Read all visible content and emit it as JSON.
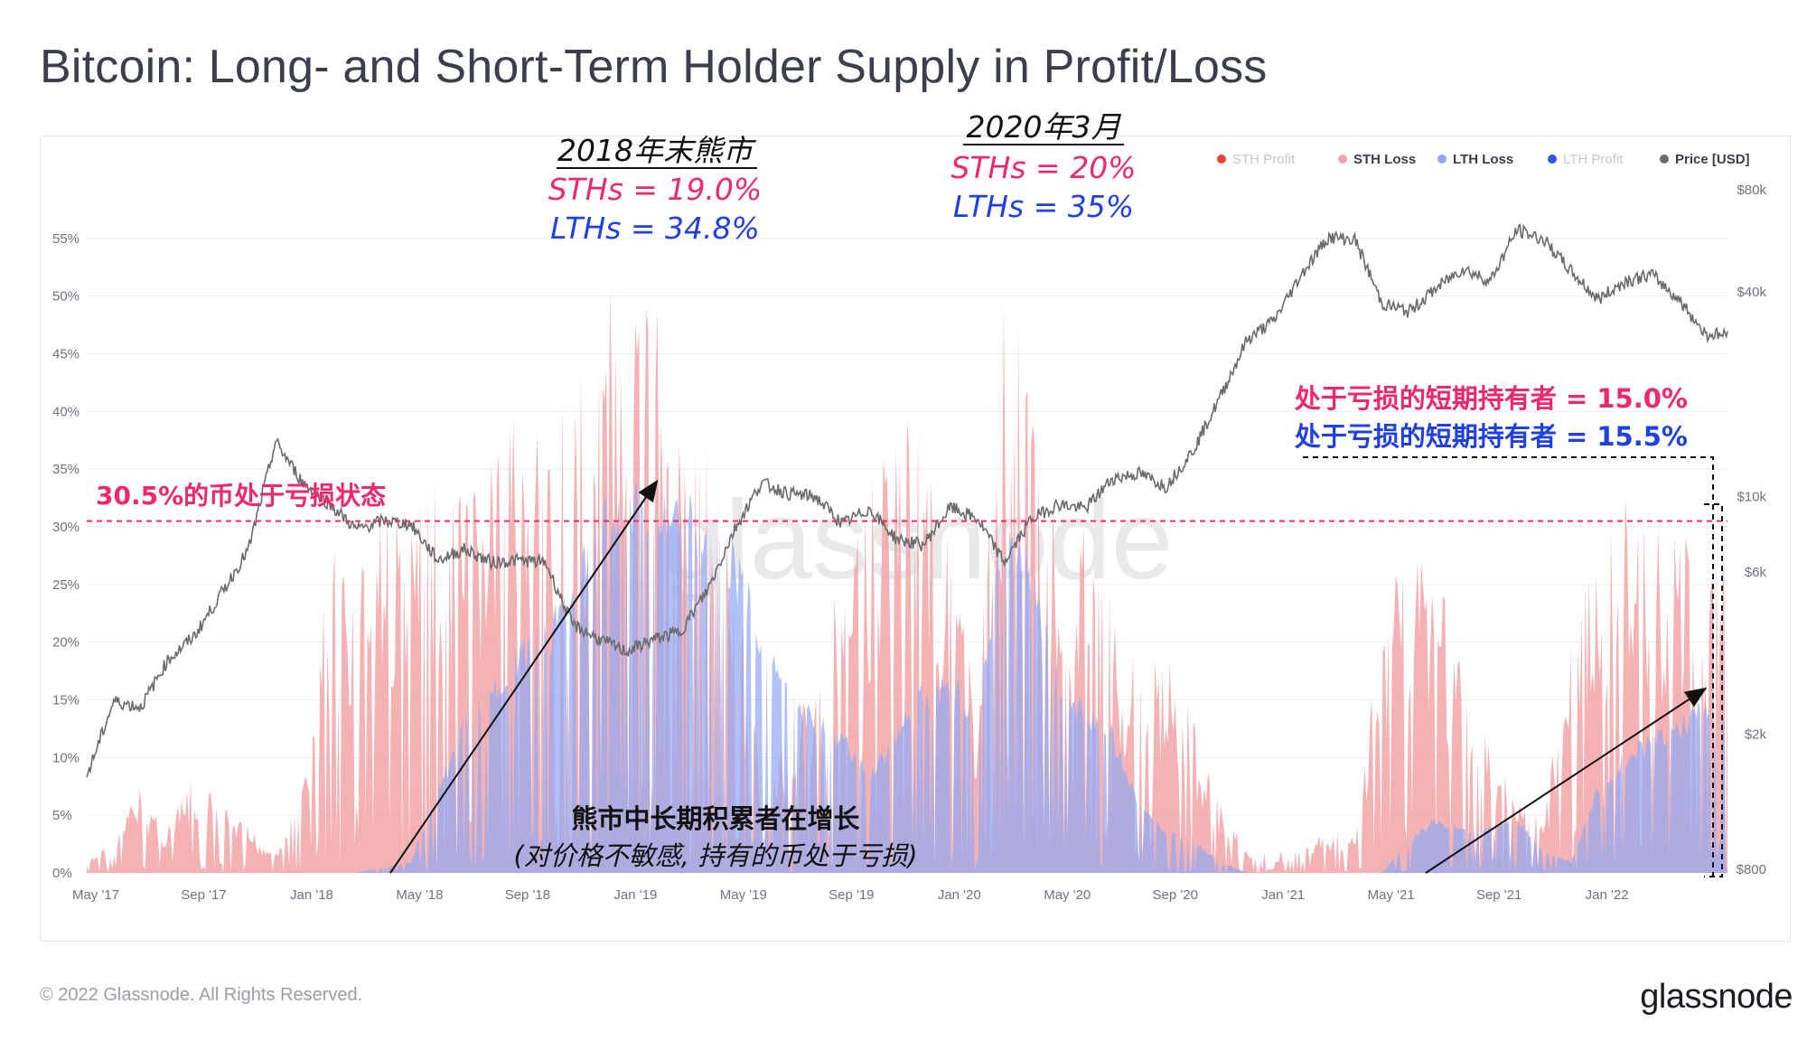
{
  "title": "Bitcoin: Long- and Short-Term Holder Supply in Profit/Loss",
  "footer": "© 2022 Glassnode. All Rights Reserved.",
  "brand": "glassnode",
  "watermark": "glassnode",
  "chart_data": {
    "type": "area",
    "legend_position": "top-right",
    "legend": [
      {
        "name": "STH Profit",
        "color": "#e8443e",
        "muted": true
      },
      {
        "name": "STH Loss",
        "color": "#f2a4a7",
        "muted": false
      },
      {
        "name": "LTH Loss",
        "color": "#93a8f2",
        "muted": false
      },
      {
        "name": "LTH Profit",
        "color": "#3a53e0",
        "muted": true
      },
      {
        "name": "Price [USD]",
        "color": "#6b6b6b",
        "muted": false
      }
    ],
    "x_ticks": [
      "May '17",
      "Sep '17",
      "Jan '18",
      "May '18",
      "Sep '18",
      "Jan '19",
      "May '19",
      "Sep '19",
      "Jan '20",
      "May '20",
      "Sep '20",
      "Jan '21",
      "May '21",
      "Sep '21",
      "Jan '22"
    ],
    "y_left_ticks": [
      "0%",
      "5%",
      "10%",
      "15%",
      "20%",
      "25%",
      "30%",
      "35%",
      "40%",
      "45%",
      "50%",
      "55%"
    ],
    "y_left_range": [
      0,
      60
    ],
    "y_right_ticks": [
      {
        "label": "$800",
        "value": 800
      },
      {
        "label": "$2k",
        "value": 2000
      },
      {
        "label": "$6k",
        "value": 6000
      },
      {
        "label": "$10k",
        "value": 10000
      },
      {
        "label": "$40k",
        "value": 40000
      },
      {
        "label": "$80k",
        "value": 80000
      }
    ],
    "y_right_scale": "log",
    "series": [
      {
        "name": "STH Loss",
        "color": "#f2a4a7",
        "points": [
          [
            "2017-05",
            1
          ],
          [
            "2017-06",
            3
          ],
          [
            "2017-07",
            8
          ],
          [
            "2017-08",
            4
          ],
          [
            "2017-09",
            9
          ],
          [
            "2017-10",
            6
          ],
          [
            "2017-11",
            4
          ],
          [
            "2017-12",
            2
          ],
          [
            "2018-01",
            8
          ],
          [
            "2018-02",
            28
          ],
          [
            "2018-03",
            31
          ],
          [
            "2018-04",
            33
          ],
          [
            "2018-05",
            32
          ],
          [
            "2018-06",
            38
          ],
          [
            "2018-07",
            33
          ],
          [
            "2018-08",
            38
          ],
          [
            "2018-09",
            40
          ],
          [
            "2018-10",
            40
          ],
          [
            "2018-11",
            42
          ],
          [
            "2018-12",
            50
          ],
          [
            "2019-01",
            52
          ],
          [
            "2019-02",
            52
          ],
          [
            "2019-03",
            46
          ],
          [
            "2019-04",
            40
          ],
          [
            "2019-05",
            28
          ],
          [
            "2019-06",
            8
          ],
          [
            "2019-07",
            12
          ],
          [
            "2019-08",
            20
          ],
          [
            "2019-09",
            26
          ],
          [
            "2019-10",
            36
          ],
          [
            "2019-11",
            40
          ],
          [
            "2019-12",
            40
          ],
          [
            "2020-01",
            28
          ],
          [
            "2020-02",
            15
          ],
          [
            "2020-03",
            53
          ],
          [
            "2020-04",
            43
          ],
          [
            "2020-05",
            33
          ],
          [
            "2020-06",
            30
          ],
          [
            "2020-07",
            25
          ],
          [
            "2020-08",
            18
          ],
          [
            "2020-09",
            19
          ],
          [
            "2020-10",
            14
          ],
          [
            "2020-11",
            6
          ],
          [
            "2020-12",
            2
          ],
          [
            "2021-01",
            2
          ],
          [
            "2021-02",
            2
          ],
          [
            "2021-03",
            4
          ],
          [
            "2021-04",
            3
          ],
          [
            "2021-05",
            25
          ],
          [
            "2021-06",
            29
          ],
          [
            "2021-07",
            29
          ],
          [
            "2021-08",
            18
          ],
          [
            "2021-09",
            12
          ],
          [
            "2021-10",
            6
          ],
          [
            "2021-11",
            5
          ],
          [
            "2021-12",
            23
          ],
          [
            "2022-01",
            28
          ],
          [
            "2022-02",
            33
          ],
          [
            "2022-03",
            30
          ],
          [
            "2022-04",
            31
          ],
          [
            "2022-05",
            30
          ]
        ]
      },
      {
        "name": "LTH Loss",
        "color": "#93a8f2",
        "points": [
          [
            "2017-05",
            0
          ],
          [
            "2018-03",
            0
          ],
          [
            "2018-05",
            1
          ],
          [
            "2018-07",
            14
          ],
          [
            "2018-09",
            20
          ],
          [
            "2018-11",
            25
          ],
          [
            "2018-12",
            33
          ],
          [
            "2019-01",
            34.8
          ],
          [
            "2019-02",
            34.8
          ],
          [
            "2019-03",
            34.8
          ],
          [
            "2019-04",
            32
          ],
          [
            "2019-05",
            29
          ],
          [
            "2019-06",
            22
          ],
          [
            "2019-07",
            18
          ],
          [
            "2019-08",
            14
          ],
          [
            "2019-09",
            13
          ],
          [
            "2019-10",
            9
          ],
          [
            "2019-11",
            13
          ],
          [
            "2019-12",
            17
          ],
          [
            "2020-01",
            18
          ],
          [
            "2020-02",
            14
          ],
          [
            "2020-03",
            35
          ],
          [
            "2020-04",
            28
          ],
          [
            "2020-05",
            18
          ],
          [
            "2020-06",
            15
          ],
          [
            "2020-07",
            13
          ],
          [
            "2020-08",
            6
          ],
          [
            "2020-09",
            4
          ],
          [
            "2020-10",
            3
          ],
          [
            "2020-11",
            1
          ],
          [
            "2020-12",
            0
          ],
          [
            "2021-05",
            0
          ],
          [
            "2021-06",
            3
          ],
          [
            "2021-07",
            5
          ],
          [
            "2021-08",
            4
          ],
          [
            "2021-09",
            4
          ],
          [
            "2021-10",
            5
          ],
          [
            "2021-11",
            2
          ],
          [
            "2021-12",
            1
          ],
          [
            "2022-01",
            8
          ],
          [
            "2022-02",
            11
          ],
          [
            "2022-03",
            12
          ],
          [
            "2022-04",
            14
          ],
          [
            "2022-05",
            15.5
          ]
        ]
      },
      {
        "name": "Price [USD]",
        "color": "#6b6b6b",
        "points": [
          [
            "2017-05",
            1500
          ],
          [
            "2017-06",
            2500
          ],
          [
            "2017-07",
            2400
          ],
          [
            "2017-08",
            3300
          ],
          [
            "2017-09",
            3900
          ],
          [
            "2017-10",
            5200
          ],
          [
            "2017-11",
            7000
          ],
          [
            "2017-12",
            14500
          ],
          [
            "2018-01",
            11000
          ],
          [
            "2018-02",
            9500
          ],
          [
            "2018-03",
            8000
          ],
          [
            "2018-04",
            8500
          ],
          [
            "2018-05",
            8300
          ],
          [
            "2018-06",
            6500
          ],
          [
            "2018-07",
            7000
          ],
          [
            "2018-08",
            6400
          ],
          [
            "2018-09",
            6500
          ],
          [
            "2018-10",
            6400
          ],
          [
            "2018-11",
            4200
          ],
          [
            "2018-12",
            3800
          ],
          [
            "2019-01",
            3500
          ],
          [
            "2019-02",
            3800
          ],
          [
            "2019-03",
            4000
          ],
          [
            "2019-04",
            5300
          ],
          [
            "2019-05",
            8000
          ],
          [
            "2019-06",
            11000
          ],
          [
            "2019-07",
            10200
          ],
          [
            "2019-08",
            10000
          ],
          [
            "2019-09",
            8300
          ],
          [
            "2019-10",
            9200
          ],
          [
            "2019-11",
            7500
          ],
          [
            "2019-12",
            7200
          ],
          [
            "2020-01",
            9300
          ],
          [
            "2020-02",
            8600
          ],
          [
            "2020-03",
            6400
          ],
          [
            "2020-04",
            8600
          ],
          [
            "2020-05",
            9500
          ],
          [
            "2020-06",
            9200
          ],
          [
            "2020-07",
            11300
          ],
          [
            "2020-08",
            11700
          ],
          [
            "2020-09",
            10700
          ],
          [
            "2020-10",
            13700
          ],
          [
            "2020-11",
            19600
          ],
          [
            "2020-12",
            29000
          ],
          [
            "2021-01",
            33000
          ],
          [
            "2021-02",
            45000
          ],
          [
            "2021-03",
            58000
          ],
          [
            "2021-04",
            57000
          ],
          [
            "2021-05",
            37000
          ],
          [
            "2021-06",
            35000
          ],
          [
            "2021-07",
            41000
          ],
          [
            "2021-08",
            47000
          ],
          [
            "2021-09",
            43000
          ],
          [
            "2021-10",
            61000
          ],
          [
            "2021-11",
            57000
          ],
          [
            "2021-12",
            46000
          ],
          [
            "2022-01",
            38000
          ],
          [
            "2022-02",
            43000
          ],
          [
            "2022-03",
            45000
          ],
          [
            "2022-04",
            38000
          ],
          [
            "2022-05",
            30000
          ]
        ]
      }
    ],
    "reference_line": {
      "value": 30.5,
      "color": "#f0286a"
    },
    "annotations": {
      "bear_2018_heading": "2018年末熊市",
      "bear_2018_sth": "STHs = 19.0%",
      "bear_2018_lth": "LTHs = 34.8%",
      "mar_2020_heading": "2020年3月",
      "mar_2020_sth": "STHs = 20%",
      "mar_2020_lth": "LTHs = 35%",
      "threshold_label": "30.5%的币处于亏损状态",
      "current_sth": "处于亏损的短期持有者 = 15.0%",
      "current_lth": "处于亏损的短期持有者 = 15.5%",
      "accumulation_line1": "熊市中长期积累者在增长",
      "accumulation_line2": "(对价格不敏感, 持有的币处于亏损)",
      "colors": {
        "sth": "#f0286a",
        "lth": "#1f3fe8",
        "dark": "#111111"
      }
    }
  }
}
